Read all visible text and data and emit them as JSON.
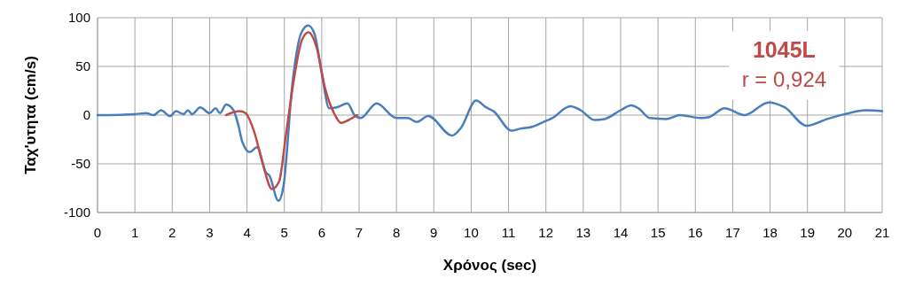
{
  "chart_data": {
    "type": "line",
    "xlabel": "Χρόνος (sec)",
    "ylabel": "Ταχ'υτητα (cm/s)",
    "xlim": [
      0,
      21
    ],
    "xticks": [
      0,
      1,
      2,
      3,
      4,
      5,
      6,
      7,
      8,
      9,
      10,
      11,
      12,
      13,
      14,
      15,
      16,
      17,
      18,
      19,
      20,
      21
    ],
    "ylim": [
      -100,
      100
    ],
    "yticks": [
      -100,
      -50,
      0,
      50,
      100
    ],
    "grid": true,
    "annotations": [
      "1045L",
      "r = 0,924"
    ],
    "series": [
      {
        "color": "#4a7ebb",
        "x": [
          0,
          1,
          1.3,
          1.5,
          1.7,
          1.94,
          2.1,
          2.3,
          2.42,
          2.53,
          2.75,
          3.0,
          3.16,
          3.28,
          3.44,
          3.64,
          3.76,
          3.88,
          4.07,
          4.27,
          4.51,
          4.6,
          4.84,
          4.98,
          5.22,
          5.46,
          5.64,
          5.81,
          6.0,
          6.2,
          6.4,
          6.69,
          6.88,
          7.04,
          7.47,
          8.0,
          8.3,
          8.54,
          8.85,
          9.49,
          9.73,
          10.13,
          10.4,
          10.6,
          11.08,
          11.3,
          11.63,
          11.94,
          12.17,
          12.65,
          12.93,
          13.3,
          13.57,
          14.0,
          14.28,
          14.48,
          14.78,
          15.23,
          15.59,
          16.14,
          16.37,
          16.78,
          17.32,
          17.96,
          18.39,
          18.98,
          19.53,
          20.0,
          20.57,
          21
        ],
        "values": [
          0,
          1,
          2,
          0,
          5,
          -1,
          4,
          1,
          5,
          1,
          8,
          2,
          7,
          2,
          11,
          5,
          -9,
          -28,
          -38,
          -33,
          -59,
          -62,
          -88,
          -72,
          34,
          85,
          92,
          83,
          43,
          7,
          8,
          12,
          0,
          -3,
          12,
          -3,
          -3,
          -7,
          -1,
          -21,
          -13,
          15,
          8,
          4,
          -16,
          -14,
          -12,
          -7,
          -3,
          9,
          5,
          -5,
          -4,
          5,
          10,
          7,
          -3,
          -4,
          0,
          -3,
          -2,
          7,
          0,
          13,
          8,
          -11,
          -4,
          1,
          5,
          4
        ]
      },
      {
        "color": "#be4b48",
        "x": [
          3.44,
          3.8,
          3.96,
          4.2,
          4.43,
          4.67,
          4.86,
          5.05,
          5.27,
          5.46,
          5.64,
          5.86,
          6.1,
          6.33,
          6.52,
          6.72,
          6.95
        ],
        "values": [
          0,
          4,
          2,
          -18,
          -51,
          -76,
          -68,
          -18,
          40,
          76,
          85,
          70,
          26,
          2,
          -8,
          -5,
          0
        ]
      }
    ]
  }
}
